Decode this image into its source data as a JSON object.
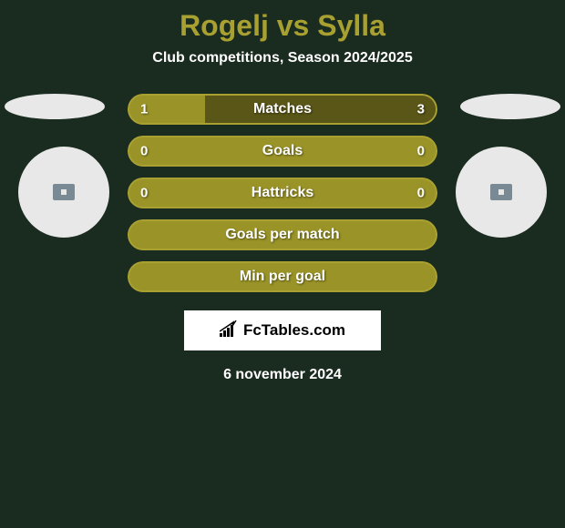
{
  "title": "Rogelj vs Sylla",
  "subtitle": "Club competitions, Season 2024/2025",
  "colors": {
    "background": "#1a2b20",
    "accent": "#a8a030",
    "bar_olive": "#9a9428",
    "bar_dark": "#5a5618",
    "text": "#ffffff",
    "ellipse": "#e8e8e8",
    "circle_inner": "#7a8a95"
  },
  "stats": [
    {
      "label": "Matches",
      "left_value": "1",
      "right_value": "3",
      "fill_percent": 25,
      "bg_color": "#5a5618",
      "fill_color": "#9a9428",
      "has_values": true
    },
    {
      "label": "Goals",
      "left_value": "0",
      "right_value": "0",
      "fill_percent": 0,
      "bg_color": "#9a9428",
      "fill_color": "#9a9428",
      "has_values": true
    },
    {
      "label": "Hattricks",
      "left_value": "0",
      "right_value": "0",
      "fill_percent": 0,
      "bg_color": "#9a9428",
      "fill_color": "#9a9428",
      "has_values": true
    },
    {
      "label": "Goals per match",
      "left_value": "",
      "right_value": "",
      "fill_percent": 0,
      "bg_color": "#9a9428",
      "fill_color": "#9a9428",
      "has_values": false
    },
    {
      "label": "Min per goal",
      "left_value": "",
      "right_value": "",
      "fill_percent": 0,
      "bg_color": "#9a9428",
      "fill_color": "#9a9428",
      "has_values": false
    }
  ],
  "logo_text": "FcTables.com",
  "date": "6 november 2024"
}
